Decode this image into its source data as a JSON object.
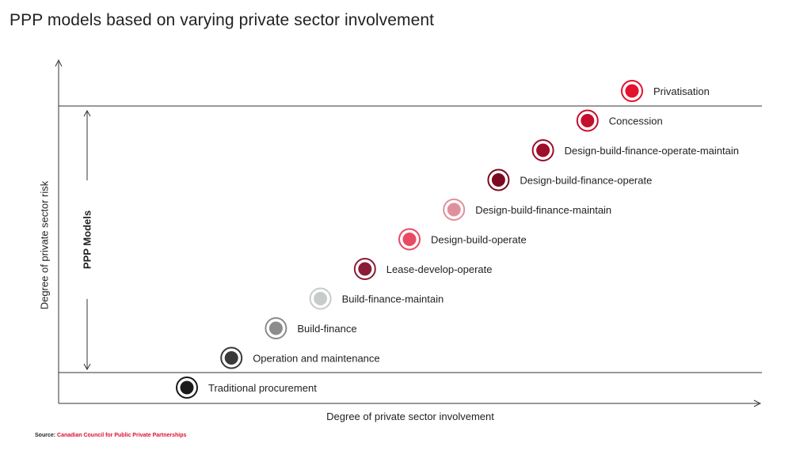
{
  "title": "PPP models based on varying private sector involvement",
  "source": {
    "prefix": "Source:",
    "value": "Canadian Council for Public Private Partnerships",
    "value_color": "#d8102e"
  },
  "chart_data": {
    "type": "scatter",
    "xlabel": "Degree of private sector involvement",
    "ylabel": "Degree of private sector risk",
    "bracket_label": "PPP Models",
    "grid": false,
    "points": [
      {
        "label": "Traditional procurement",
        "x": 1,
        "y": 1,
        "color": "#1a1a1a"
      },
      {
        "label": "Operation and maintenance",
        "x": 2,
        "y": 2,
        "color": "#3a3a3a"
      },
      {
        "label": "Build-finance",
        "x": 3,
        "y": 3,
        "color": "#8c8c8c"
      },
      {
        "label": "Build-finance-maintain",
        "x": 4,
        "y": 4,
        "color": "#c8cbcc"
      },
      {
        "label": "Lease-develop-operate",
        "x": 5,
        "y": 5,
        "color": "#8a1c35"
      },
      {
        "label": "Design-build-operate",
        "x": 6,
        "y": 6,
        "color": "#e84a64"
      },
      {
        "label": "Design-build-finance-maintain",
        "x": 7,
        "y": 7,
        "color": "#e0909c"
      },
      {
        "label": "Design-build-finance-operate",
        "x": 8,
        "y": 8,
        "color": "#7a0a22"
      },
      {
        "label": "Design-build-finance-operate-maintain",
        "x": 9,
        "y": 9,
        "color": "#9e0d2c"
      },
      {
        "label": "Concession",
        "x": 10,
        "y": 10,
        "color": "#c4102c"
      },
      {
        "label": "Privatisation",
        "x": 11,
        "y": 11,
        "color": "#e3122e"
      }
    ],
    "ppp_range": [
      2,
      10
    ]
  }
}
